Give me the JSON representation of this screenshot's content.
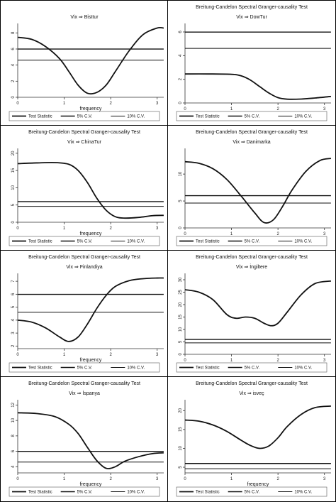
{
  "chart_data": [
    {
      "type": "line",
      "title": "",
      "subtitle": "Vix ⇒ Bisttur",
      "xlabel": "frequency",
      "xlim": [
        0,
        3.14159
      ],
      "xticks": [
        0,
        1,
        2,
        3
      ],
      "ylim": [
        0,
        9
      ],
      "yticks": [
        0,
        2,
        4,
        6,
        8
      ],
      "legend": [
        "Test Statistic",
        "5% C.V.",
        "10% C.V."
      ],
      "series": [
        {
          "x": [
            0,
            0.3,
            0.6,
            0.9,
            1.1,
            1.3,
            1.5,
            1.7,
            1.9,
            2.1,
            2.4,
            2.7,
            3.0,
            3.14
          ],
          "values": [
            7.45,
            7.2,
            6.3,
            4.8,
            3.2,
            1.5,
            0.5,
            0.6,
            1.5,
            3.2,
            5.8,
            7.8,
            8.6,
            8.6
          ]
        },
        {
          "x": [
            0,
            3.14
          ],
          "values": [
            5.99,
            5.99
          ]
        },
        {
          "x": [
            0,
            3.14
          ],
          "values": [
            4.61,
            4.61
          ]
        }
      ]
    },
    {
      "type": "line",
      "title": "Breitung-Candelon Spectral Granger-causality Test",
      "subtitle": "Vix ⇒ DowTur",
      "xlabel": "",
      "xlim": [
        0,
        3.14159
      ],
      "xticks": [
        0,
        1,
        2,
        3
      ],
      "ylim": [
        0,
        6.6
      ],
      "yticks": [
        0,
        2,
        4,
        6
      ],
      "legend": [
        "Test Statistic",
        "5% C.V.",
        "10% C.V."
      ],
      "series": [
        {
          "x": [
            0,
            0.5,
            1.0,
            1.2,
            1.4,
            1.6,
            1.8,
            2.0,
            2.2,
            2.5,
            2.8,
            3.14
          ],
          "values": [
            2.45,
            2.45,
            2.42,
            2.3,
            1.95,
            1.4,
            0.85,
            0.45,
            0.32,
            0.33,
            0.42,
            0.55
          ]
        },
        {
          "x": [
            0,
            3.14
          ],
          "values": [
            5.99,
            5.99
          ]
        },
        {
          "x": [
            0,
            3.14
          ],
          "values": [
            4.61,
            4.61
          ]
        }
      ]
    },
    {
      "type": "line",
      "title": "Breitung-Candelon Spectral Granger-causality Test",
      "subtitle": "Vix ⇒ ChinaTur",
      "xlabel": "frequency",
      "xlim": [
        0,
        3.14159
      ],
      "xticks": [
        0,
        1,
        2,
        3
      ],
      "ylim": [
        0,
        21
      ],
      "yticks": [
        0,
        5,
        10,
        15,
        20
      ],
      "legend": [
        "Test Statistic",
        "5% C.V.",
        "10% C.V."
      ],
      "series": [
        {
          "x": [
            0,
            0.4,
            0.8,
            1.1,
            1.3,
            1.5,
            1.7,
            1.9,
            2.1,
            2.3,
            2.6,
            2.9,
            3.14
          ],
          "values": [
            17.0,
            17.2,
            17.3,
            16.8,
            15.0,
            11.5,
            7.0,
            3.5,
            1.6,
            1.2,
            1.4,
            1.9,
            2.0
          ]
        },
        {
          "x": [
            0,
            3.14
          ],
          "values": [
            5.99,
            5.99
          ]
        },
        {
          "x": [
            0,
            3.14
          ],
          "values": [
            4.61,
            4.61
          ]
        }
      ]
    },
    {
      "type": "line",
      "title": "Breitung-Candelon Spectral Granger-causality Test",
      "subtitle": "Vix ⇒ Danimarka",
      "xlabel": "",
      "xlim": [
        0,
        3.14159
      ],
      "xticks": [
        0,
        1,
        2,
        3
      ],
      "ylim": [
        0,
        14.5
      ],
      "yticks": [
        0,
        5,
        10
      ],
      "legend": [
        "Test Statistic",
        "5% C.V.",
        "10% C.V."
      ],
      "series": [
        {
          "x": [
            0,
            0.3,
            0.6,
            0.9,
            1.2,
            1.5,
            1.7,
            1.9,
            2.1,
            2.3,
            2.6,
            2.9,
            3.14
          ],
          "values": [
            12.3,
            12.0,
            11.0,
            9.0,
            6.0,
            2.8,
            1.0,
            1.5,
            4.0,
            7.0,
            10.5,
            12.5,
            12.9
          ]
        },
        {
          "x": [
            0,
            3.14
          ],
          "values": [
            5.99,
            5.99
          ]
        },
        {
          "x": [
            0,
            3.14
          ],
          "values": [
            4.61,
            4.61
          ]
        }
      ]
    },
    {
      "type": "line",
      "title": "Breitung-Candelon Spectral Granger-causality Test",
      "subtitle": "Vix ⇒ Finlandiya",
      "xlabel": "frequency",
      "xlim": [
        0,
        3.14159
      ],
      "xticks": [
        0,
        1,
        2,
        3
      ],
      "ylim": [
        1.8,
        7.5
      ],
      "yticks": [
        2,
        3,
        4,
        5,
        6,
        7
      ],
      "legend": [
        "Test Statistic",
        "5% C.V.",
        "10% C.V."
      ],
      "series": [
        {
          "x": [
            0,
            0.3,
            0.6,
            0.9,
            1.1,
            1.3,
            1.5,
            1.7,
            1.9,
            2.1,
            2.4,
            2.7,
            3.0,
            3.14
          ],
          "values": [
            4.0,
            3.85,
            3.4,
            2.7,
            2.35,
            2.7,
            3.7,
            4.9,
            5.9,
            6.6,
            7.05,
            7.2,
            7.25,
            7.25
          ]
        },
        {
          "x": [
            0,
            3.14
          ],
          "values": [
            5.99,
            5.99
          ]
        },
        {
          "x": [
            0,
            3.14
          ],
          "values": [
            4.61,
            4.61
          ]
        }
      ]
    },
    {
      "type": "line",
      "title": "Breitung-Candelon Spectral Granger-causality Test",
      "subtitle": "Vix ⇒ İngiltere",
      "xlabel": "",
      "xlim": [
        0,
        3.14159
      ],
      "xticks": [
        0,
        1,
        2,
        3
      ],
      "ylim": [
        0,
        32
      ],
      "yticks": [
        0,
        5,
        10,
        15,
        20,
        25,
        30
      ],
      "legend": [
        "Test Statistic",
        "5% C.V.",
        "10% C.V."
      ],
      "series": [
        {
          "x": [
            0,
            0.3,
            0.6,
            0.9,
            1.1,
            1.3,
            1.5,
            1.7,
            1.85,
            2.0,
            2.2,
            2.5,
            2.8,
            3.14
          ],
          "values": [
            26.0,
            25.0,
            22.0,
            16.0,
            14.5,
            15.0,
            14.5,
            12.5,
            11.5,
            12.5,
            17.0,
            24.0,
            28.5,
            29.5
          ]
        },
        {
          "x": [
            0,
            3.14
          ],
          "values": [
            5.99,
            5.99
          ]
        },
        {
          "x": [
            0,
            3.14
          ],
          "values": [
            4.61,
            4.61
          ]
        }
      ]
    },
    {
      "type": "line",
      "title": "Breitung-Candelon Spectral Granger-causality Test",
      "subtitle": "Vix ⇒ İspanya",
      "xlabel": "frequency",
      "xlim": [
        0,
        3.14159
      ],
      "xticks": [
        0,
        1,
        2,
        3
      ],
      "ylim": [
        3.2,
        12.5
      ],
      "yticks": [
        4,
        6,
        8,
        10,
        12
      ],
      "legend": [
        "Test Statistic",
        "5% C.V.",
        "10% C.V."
      ],
      "series": [
        {
          "x": [
            0,
            0.4,
            0.8,
            1.1,
            1.3,
            1.5,
            1.7,
            1.9,
            2.1,
            2.3,
            2.6,
            2.9,
            3.14
          ],
          "values": [
            11.0,
            10.9,
            10.5,
            9.5,
            8.3,
            6.5,
            4.8,
            3.8,
            4.0,
            4.7,
            5.3,
            5.7,
            5.8
          ]
        },
        {
          "x": [
            0,
            3.14
          ],
          "values": [
            5.99,
            5.99
          ]
        },
        {
          "x": [
            0,
            3.14
          ],
          "values": [
            4.61,
            4.61
          ]
        }
      ]
    },
    {
      "type": "line",
      "title": "Breitung-Candelon Spectral Granger-causality Test",
      "subtitle": "Vix ⇒ isveç",
      "xlabel": "frequency",
      "xlim": [
        0,
        3.14159
      ],
      "xticks": [
        0,
        1,
        2,
        3
      ],
      "ylim": [
        3.5,
        22.5
      ],
      "yticks": [
        5,
        10,
        15,
        20
      ],
      "legend": [
        "Test Statistic",
        "5% C.V.",
        "10% C.V."
      ],
      "series": [
        {
          "x": [
            0,
            0.3,
            0.6,
            0.9,
            1.2,
            1.4,
            1.6,
            1.8,
            2.0,
            2.2,
            2.5,
            2.8,
            3.14
          ],
          "values": [
            17.5,
            17.2,
            16.2,
            14.5,
            12.2,
            10.8,
            10.0,
            10.6,
            12.8,
            15.8,
            19.0,
            20.8,
            21.2
          ]
        },
        {
          "x": [
            0,
            3.14
          ],
          "values": [
            5.99,
            5.99
          ]
        },
        {
          "x": [
            0,
            3.14
          ],
          "values": [
            4.61,
            4.61
          ]
        }
      ]
    }
  ]
}
